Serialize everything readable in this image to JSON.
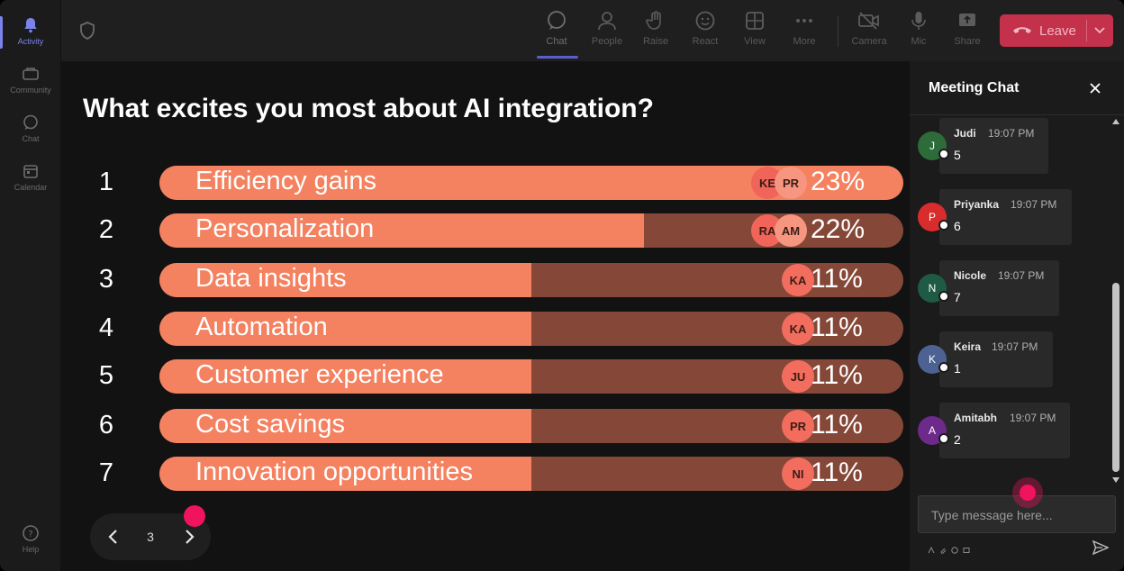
{
  "rail": {
    "items": [
      {
        "label": "Activity",
        "icon": "bell-icon"
      },
      {
        "label": "Community",
        "icon": "community-icon"
      },
      {
        "label": "Chat",
        "icon": "chat-icon"
      },
      {
        "label": "Calendar",
        "icon": "calendar-icon"
      },
      {
        "label": "Help",
        "icon": "help-icon"
      }
    ]
  },
  "toolbar": {
    "chat": "Chat",
    "people": "People",
    "raise": "Raise",
    "react": "React",
    "view": "View",
    "more": "More",
    "camera": "Camera",
    "mic": "Mic",
    "share": "Share",
    "leave": "Leave"
  },
  "poll": {
    "question": "What excites you most about AI integration?",
    "options": [
      {
        "num": "1",
        "label": "Efficiency gains",
        "percent": "23%",
        "fill": 1.0,
        "voters": [
          "KE",
          "PR"
        ]
      },
      {
        "num": "2",
        "label": "Personalization",
        "percent": "22%",
        "fill": 0.651,
        "voters": [
          "RA",
          "AM"
        ]
      },
      {
        "num": "3",
        "label": "Data insights",
        "percent": "11%",
        "fill": 0.5,
        "voters": [
          "KA"
        ]
      },
      {
        "num": "4",
        "label": "Automation",
        "percent": "11%",
        "fill": 0.5,
        "voters": [
          "KA"
        ]
      },
      {
        "num": "5",
        "label": "Customer experience",
        "percent": "11%",
        "fill": 0.5,
        "voters": [
          "JU"
        ]
      },
      {
        "num": "6",
        "label": "Cost savings",
        "percent": "11%",
        "fill": 0.5,
        "voters": [
          "PR"
        ]
      },
      {
        "num": "7",
        "label": "Innovation opportunities",
        "percent": "11%",
        "fill": 0.5,
        "voters": [
          "NI"
        ]
      }
    ],
    "page": "3"
  },
  "chat": {
    "title": "Meeting Chat",
    "messages": [
      {
        "initial": "J",
        "name": "Judi",
        "time": "19:07 PM",
        "text": "5",
        "color": "#2e6b3a"
      },
      {
        "initial": "P",
        "name": "Priyanka",
        "time": "19:07 PM",
        "text": "6",
        "color": "#d92c2c"
      },
      {
        "initial": "N",
        "name": "Nicole",
        "time": "19:07 PM",
        "text": "7",
        "color": "#1f5a45"
      },
      {
        "initial": "K",
        "name": "Keira",
        "time": "19:07 PM",
        "text": "1",
        "color": "#4d6193"
      },
      {
        "initial": "A",
        "name": "Amitabh",
        "time": "19:07 PM",
        "text": "2",
        "color": "#6d2a8a"
      }
    ],
    "placeholder": "Type message here..."
  },
  "colors": {
    "bar_fill": "#f48160",
    "bar_track": "#854838",
    "leave": "#c4314b",
    "accent": "#7b83eb",
    "click_marker": "#f0135d"
  }
}
